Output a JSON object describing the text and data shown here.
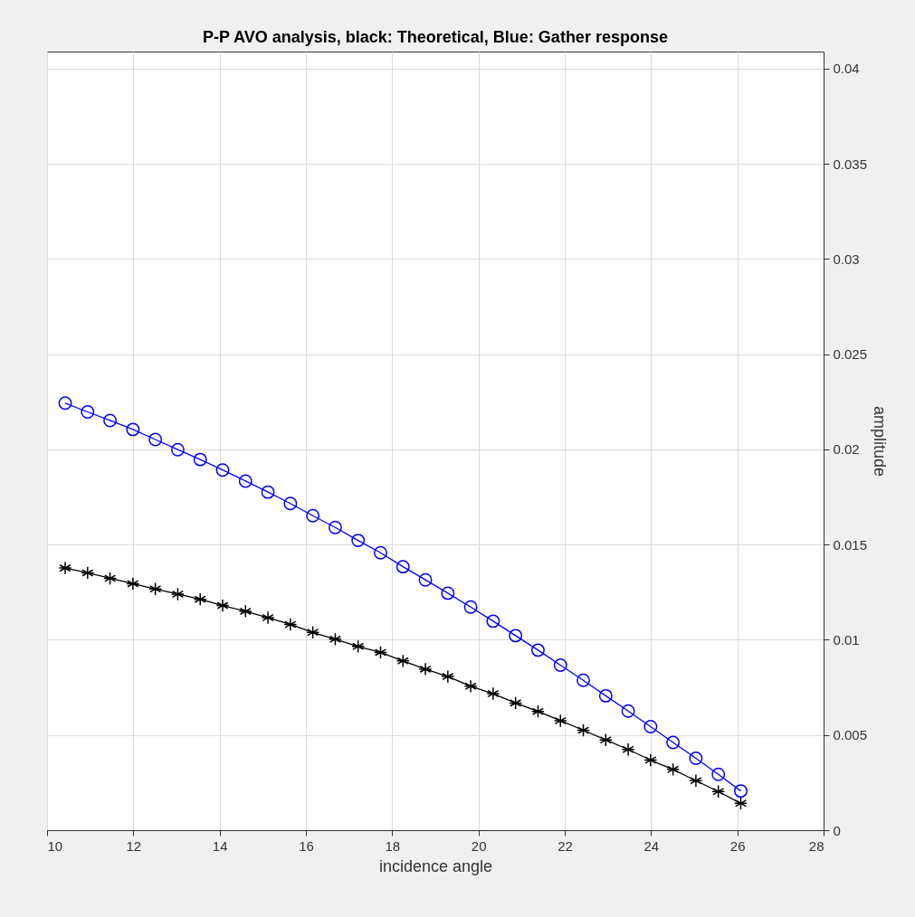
{
  "chart_data": {
    "type": "line",
    "title": "P-P AVO analysis, black: Theoretical, Blue: Gather response",
    "xlabel": "incidence angle",
    "ylabel": "amplitude",
    "x": [
      10.42,
      10.94,
      11.46,
      11.99,
      12.51,
      13.03,
      13.55,
      14.07,
      14.6,
      15.12,
      15.64,
      16.16,
      16.68,
      17.21,
      17.73,
      18.25,
      18.77,
      19.29,
      19.82,
      20.34,
      20.86,
      21.38,
      21.9,
      22.43,
      22.95,
      23.47,
      23.99,
      24.51,
      25.04,
      25.56,
      26.08
    ],
    "series": [
      {
        "color": "#0000ff",
        "marker": "circle",
        "values": [
          0.02243,
          0.02197,
          0.02152,
          0.02105,
          0.02052,
          0.01999,
          0.01947,
          0.01892,
          0.01834,
          0.01776,
          0.01716,
          0.01652,
          0.0159,
          0.01522,
          0.01457,
          0.01384,
          0.01315,
          0.01245,
          0.01172,
          0.01098,
          0.01022,
          0.00946,
          0.00867,
          0.00787,
          0.00706,
          0.00626,
          0.00544,
          0.00461,
          0.00378,
          0.00293,
          0.00206
        ]
      },
      {
        "color": "#000000",
        "marker": "cross",
        "values": [
          0.01377,
          0.01352,
          0.01323,
          0.01295,
          0.01267,
          0.0124,
          0.01213,
          0.0118,
          0.0115,
          0.01116,
          0.01081,
          0.01039,
          0.01003,
          0.00965,
          0.00934,
          0.00889,
          0.00846,
          0.00807,
          0.00756,
          0.00717,
          0.00668,
          0.00624,
          0.00575,
          0.00525,
          0.00474,
          0.00424,
          0.00368,
          0.00319,
          0.0026,
          0.00203,
          0.00141
        ]
      }
    ],
    "xlim": [
      10,
      28
    ],
    "xticks": [
      10,
      12,
      14,
      16,
      18,
      20,
      22,
      24,
      26,
      28
    ],
    "ylim": [
      0,
      0.0409
    ],
    "yticks": [
      0,
      0.005,
      0.01,
      0.015,
      0.02,
      0.025,
      0.03,
      0.035,
      0.04
    ],
    "grid": true,
    "line_style": "solid"
  }
}
